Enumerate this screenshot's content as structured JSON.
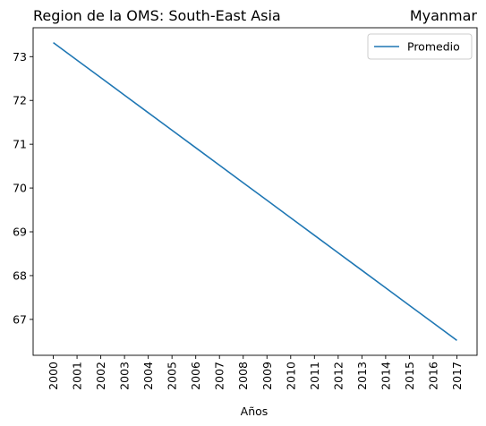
{
  "chart_data": {
    "type": "line",
    "title_left": "Region de la OMS: South-East Asia",
    "title_right": "Myanmar",
    "xlabel": "Años",
    "ylabel": "",
    "x": [
      2000,
      2001,
      2002,
      2003,
      2004,
      2005,
      2006,
      2007,
      2008,
      2009,
      2010,
      2011,
      2012,
      2013,
      2014,
      2015,
      2016,
      2017
    ],
    "x_tick_labels": [
      "2000",
      "2001",
      "2002",
      "2003",
      "2004",
      "2005",
      "2006",
      "2007",
      "2008",
      "2009",
      "2010",
      "2011",
      "2012",
      "2013",
      "2014",
      "2015",
      "2016",
      "2017"
    ],
    "y_ticks": [
      67,
      68,
      69,
      70,
      71,
      72,
      73
    ],
    "y_tick_labels": [
      "67",
      "68",
      "69",
      "70",
      "71",
      "72",
      "73"
    ],
    "ylim": [
      66.18,
      73.66
    ],
    "series": [
      {
        "name": "Promedio",
        "color": "#1f77b4",
        "values": [
          73.32,
          72.92,
          72.52,
          72.12,
          71.72,
          71.32,
          70.92,
          70.52,
          70.12,
          69.72,
          69.32,
          68.92,
          68.52,
          68.12,
          67.72,
          67.32,
          66.92,
          66.52
        ]
      }
    ],
    "legend_position": "top-right",
    "grid": false
  }
}
